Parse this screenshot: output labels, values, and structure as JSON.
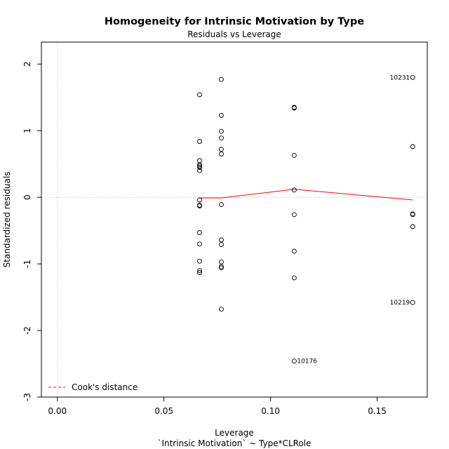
{
  "chart_data": {
    "type": "scatter",
    "title": "Homogeneity for Intrinsic Motivation by Type",
    "subtitle": "Residuals vs Leverage",
    "xlabel": "Leverage",
    "xlabel2": "`Intrinsic Motivation` ~ Type*CLRole",
    "ylabel": "Standardized residuals",
    "xlim": [
      -0.0075,
      0.1735
    ],
    "ylim": [
      -3,
      2.33
    ],
    "x_ticks": [
      0.0,
      0.05,
      0.1,
      0.15
    ],
    "x_tick_labels": [
      "0.00",
      "0.05",
      "0.10",
      "0.15"
    ],
    "y_ticks": [
      -3,
      -2,
      -1,
      0,
      1,
      2
    ],
    "y_tick_labels": [
      "-3",
      "-2",
      "-1",
      "0",
      "1",
      "2"
    ],
    "grid": false,
    "reference_lines": {
      "x": 0,
      "y": 0,
      "style": "dotted",
      "color": "#bbbbbb"
    },
    "points": [
      {
        "x": 0.0667,
        "y": 1.54
      },
      {
        "x": 0.0667,
        "y": 0.84
      },
      {
        "x": 0.0667,
        "y": 0.55
      },
      {
        "x": 0.0667,
        "y": 0.49
      },
      {
        "x": 0.0667,
        "y": 0.47
      },
      {
        "x": 0.0667,
        "y": 0.45
      },
      {
        "x": 0.0667,
        "y": 0.4
      },
      {
        "x": 0.0667,
        "y": -0.04
      },
      {
        "x": 0.0667,
        "y": -0.12
      },
      {
        "x": 0.0667,
        "y": -0.13
      },
      {
        "x": 0.0667,
        "y": -0.53
      },
      {
        "x": 0.0667,
        "y": -0.7
      },
      {
        "x": 0.0667,
        "y": -0.96
      },
      {
        "x": 0.0667,
        "y": -1.1
      },
      {
        "x": 0.0667,
        "y": -1.13
      },
      {
        "x": 0.0769,
        "y": 1.77
      },
      {
        "x": 0.0769,
        "y": 1.23
      },
      {
        "x": 0.0769,
        "y": 0.99
      },
      {
        "x": 0.0769,
        "y": 0.89
      },
      {
        "x": 0.0769,
        "y": 0.72
      },
      {
        "x": 0.0769,
        "y": 0.65
      },
      {
        "x": 0.0769,
        "y": -0.11
      },
      {
        "x": 0.0769,
        "y": -0.64
      },
      {
        "x": 0.0769,
        "y": -0.71
      },
      {
        "x": 0.0769,
        "y": -0.97
      },
      {
        "x": 0.0769,
        "y": -1.04
      },
      {
        "x": 0.0769,
        "y": -1.06
      },
      {
        "x": 0.0769,
        "y": -1.68
      },
      {
        "x": 0.1111,
        "y": 1.35
      },
      {
        "x": 0.1111,
        "y": 1.34
      },
      {
        "x": 0.1111,
        "y": 0.63
      },
      {
        "x": 0.1111,
        "y": 0.11
      },
      {
        "x": 0.1111,
        "y": -0.26
      },
      {
        "x": 0.1111,
        "y": -0.81
      },
      {
        "x": 0.1111,
        "y": -1.21
      },
      {
        "x": 0.1111,
        "y": -2.46,
        "label": "10176"
      },
      {
        "x": 0.1667,
        "y": 1.8,
        "label": "10231"
      },
      {
        "x": 0.1667,
        "y": 0.76
      },
      {
        "x": 0.1667,
        "y": -0.25
      },
      {
        "x": 0.1667,
        "y": -0.26
      },
      {
        "x": 0.1667,
        "y": -0.44
      },
      {
        "x": 0.1667,
        "y": -1.58,
        "label": "10219"
      }
    ],
    "smooth_line": {
      "color": "#ff0000",
      "x": [
        0.0667,
        0.0769,
        0.1111,
        0.1667
      ],
      "y": [
        -0.01,
        -0.01,
        0.12,
        -0.04
      ]
    },
    "legend": {
      "position": "bottom-left",
      "entries": [
        {
          "label": "Cook's distance",
          "color": "#ff0000",
          "style": "dashed"
        }
      ]
    }
  }
}
